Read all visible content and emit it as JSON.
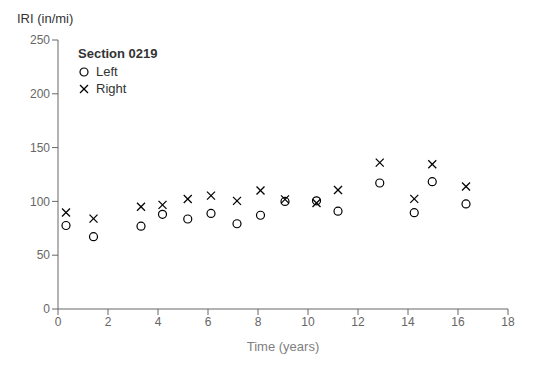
{
  "chart_data": {
    "type": "scatter",
    "xlabel": "Time (years)",
    "ylabel": "IRI (in/mi)",
    "legend_title": "Section 0219",
    "x": [
      0.32,
      1.42,
      3.32,
      4.18,
      5.19,
      6.12,
      7.16,
      8.1,
      9.08,
      10.34,
      11.2,
      12.87,
      14.25,
      14.97,
      16.32
    ],
    "series": [
      {
        "name": "Left",
        "color": "#000000",
        "marker": "circle",
        "values": [
          77.61,
          67.26,
          76.98,
          87.96,
          83.63,
          88.82,
          79.25,
          87.15,
          99.98,
          100.52,
          90.88,
          117.12,
          89.54,
          118.31,
          97.63
        ]
      },
      {
        "name": "Right",
        "color": "#000000",
        "marker": "x",
        "values": [
          89.71,
          83.93,
          95.05,
          96.83,
          102.27,
          105.33,
          100.53,
          110.12,
          101.94,
          98.48,
          110.63,
          136.06,
          102.32,
          134.54,
          113.81
        ]
      }
    ],
    "xlim": [
      0,
      18
    ],
    "ylim": [
      0,
      250
    ],
    "xticks": [
      0,
      2,
      4,
      6,
      8,
      10,
      12,
      14,
      16,
      18
    ],
    "yticks": [
      0,
      50,
      100,
      150,
      200,
      250
    ],
    "grid": false,
    "legend": "upper left"
  }
}
